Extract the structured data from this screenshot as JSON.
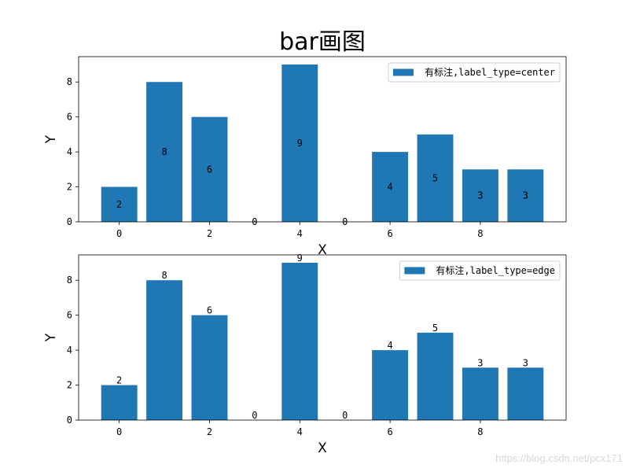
{
  "chart_data": {
    "title": "bar画图",
    "watermark": "https://blog.csdn.net/pcx171",
    "subplots": [
      {
        "type": "bar",
        "x": [
          0,
          1,
          2,
          3,
          4,
          5,
          6,
          7,
          8,
          9
        ],
        "values": [
          2,
          8,
          6,
          0,
          9,
          0,
          4,
          5,
          3,
          3
        ],
        "bar_labels": [
          "2",
          "8",
          "6",
          "0",
          "9",
          "0",
          "4",
          "5",
          "3",
          "3"
        ],
        "label_type": "center",
        "series_name": "有标注,label_type=center",
        "color": "#1f77b4",
        "xlabel": "X",
        "ylabel": "Y",
        "xticks": [
          "0",
          "2",
          "4",
          "6",
          "8"
        ],
        "yticks": [
          "0",
          "2",
          "4",
          "6",
          "8"
        ],
        "xlim": [
          -0.9,
          9.9
        ],
        "ylim": [
          0,
          9.45
        ],
        "legend": "upper-right",
        "grid": false
      },
      {
        "type": "bar",
        "x": [
          0,
          1,
          2,
          3,
          4,
          5,
          6,
          7,
          8,
          9
        ],
        "values": [
          2,
          8,
          6,
          0,
          9,
          0,
          4,
          5,
          3,
          3
        ],
        "bar_labels": [
          "2",
          "8",
          "6",
          "0",
          "9",
          "0",
          "4",
          "5",
          "3",
          "3"
        ],
        "label_type": "edge",
        "series_name": "有标注,label_type=edge",
        "color": "#1f77b4",
        "xlabel": "X",
        "ylabel": "Y",
        "xticks": [
          "0",
          "2",
          "4",
          "6",
          "8"
        ],
        "yticks": [
          "0",
          "2",
          "4",
          "6",
          "8"
        ],
        "xlim": [
          -0.9,
          9.9
        ],
        "ylim": [
          0,
          9.45
        ],
        "legend": "upper-right",
        "grid": false
      }
    ]
  }
}
